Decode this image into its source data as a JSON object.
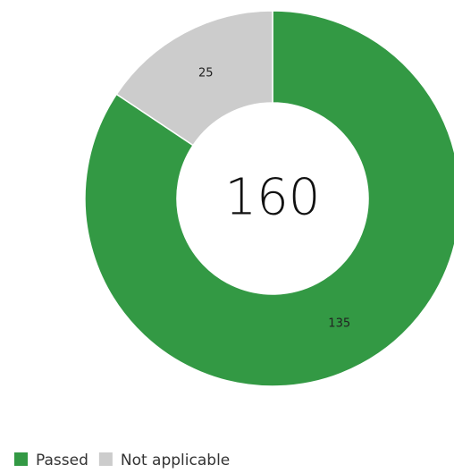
{
  "chart_data": {
    "type": "pie",
    "donut": true,
    "categories": [
      "Passed",
      "Not applicable"
    ],
    "values": [
      135,
      25
    ],
    "colors": [
      "#339944",
      "#cccccc"
    ],
    "center_label": "160"
  }
}
